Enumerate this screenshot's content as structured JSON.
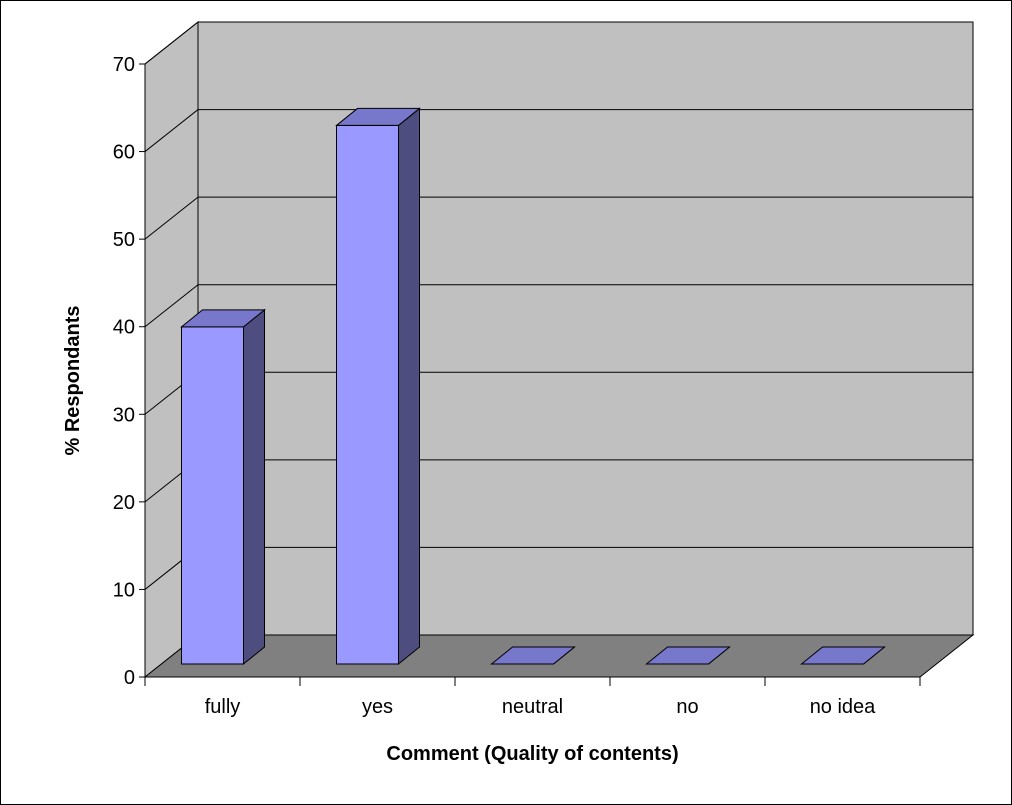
{
  "chart_data": {
    "type": "bar",
    "style": "3d-column",
    "title": "",
    "xlabel": "Comment (Quality of contents)",
    "ylabel": "% Respondants",
    "categories": [
      "fully",
      "yes",
      "neutral",
      "no",
      "no idea"
    ],
    "values": [
      38.5,
      61.5,
      0,
      0,
      0
    ],
    "ylim": [
      0,
      70
    ],
    "yticks": [
      0,
      10,
      20,
      30,
      40,
      50,
      60,
      70
    ],
    "grid": true,
    "legend": "none",
    "colors": {
      "bar_front": "#9999FF",
      "bar_side": "#4D4D80",
      "bar_top": "#7777CC",
      "wall": "#C0C0C0",
      "floor": "#808080",
      "gridline": "#000000"
    }
  }
}
